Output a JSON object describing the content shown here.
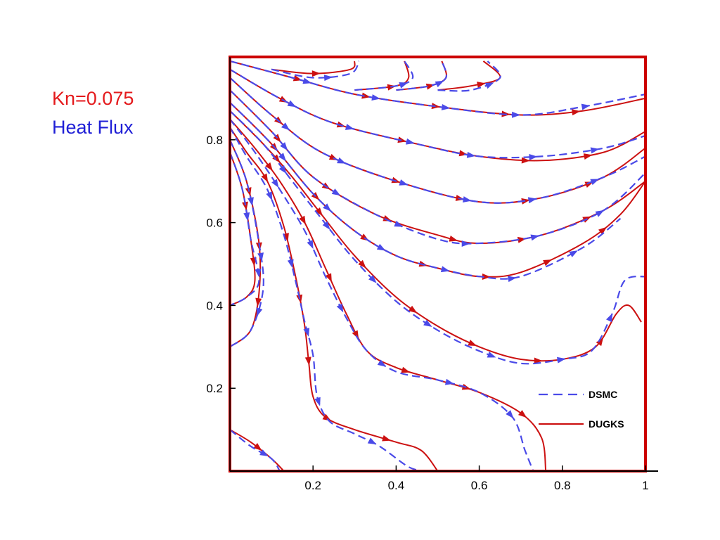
{
  "annotation": {
    "line1": "Kn=0.075",
    "line2": "Heat Flux",
    "line1_color": "#e41a1c",
    "line2_color": "#1f1fd6"
  },
  "colors": {
    "frame": "#cc0000",
    "dsmc": "#4a4ae8",
    "dugks": "#cc1111"
  },
  "chart_data": {
    "type": "line",
    "xlim": [
      0,
      1
    ],
    "ylim": [
      0,
      1
    ],
    "xticks": [
      0.2,
      0.4,
      0.6,
      0.8,
      1
    ],
    "xtick_labels": [
      "0.2",
      "0.4",
      "0.6",
      "0.8",
      "1"
    ],
    "yticks": [
      0.2,
      0.4,
      0.6,
      0.8
    ],
    "ytick_labels": [
      "0.2",
      "0.4",
      "0.6",
      "0.8"
    ],
    "legend": {
      "position": "bottom-right",
      "entries": [
        "DSMC",
        "DUGKS"
      ]
    },
    "series": [
      {
        "name": "DUGKS",
        "style": "solid",
        "lines": [
          [
            [
              0.0,
              0.99
            ],
            [
              0.15,
              0.95
            ],
            [
              0.3,
              0.91
            ],
            [
              0.5,
              0.88
            ],
            [
              0.7,
              0.86
            ],
            [
              0.85,
              0.87
            ],
            [
              1.0,
              0.9
            ]
          ],
          [
            [
              0.0,
              0.97
            ],
            [
              0.12,
              0.9
            ],
            [
              0.25,
              0.84
            ],
            [
              0.45,
              0.79
            ],
            [
              0.6,
              0.76
            ],
            [
              0.75,
              0.75
            ],
            [
              0.9,
              0.77
            ],
            [
              1.0,
              0.82
            ]
          ],
          [
            [
              0.0,
              0.95
            ],
            [
              0.1,
              0.86
            ],
            [
              0.22,
              0.77
            ],
            [
              0.4,
              0.7
            ],
            [
              0.6,
              0.65
            ],
            [
              0.75,
              0.66
            ],
            [
              0.9,
              0.71
            ],
            [
              1.0,
              0.78
            ]
          ],
          [
            [
              0.0,
              0.92
            ],
            [
              0.1,
              0.82
            ],
            [
              0.2,
              0.71
            ],
            [
              0.35,
              0.62
            ],
            [
              0.5,
              0.57
            ],
            [
              0.6,
              0.55
            ],
            [
              0.75,
              0.57
            ],
            [
              0.9,
              0.63
            ],
            [
              1.0,
              0.7
            ]
          ],
          [
            [
              0.0,
              0.89
            ],
            [
              0.1,
              0.79
            ],
            [
              0.2,
              0.67
            ],
            [
              0.3,
              0.58
            ],
            [
              0.4,
              0.52
            ],
            [
              0.5,
              0.49
            ],
            [
              0.6,
              0.47
            ],
            [
              0.7,
              0.48
            ],
            [
              0.85,
              0.55
            ],
            [
              0.94,
              0.62
            ],
            [
              1.0,
              0.7
            ]
          ],
          [
            [
              0.0,
              0.87
            ],
            [
              0.08,
              0.79
            ],
            [
              0.15,
              0.71
            ],
            [
              0.22,
              0.62
            ],
            [
              0.3,
              0.52
            ],
            [
              0.4,
              0.42
            ],
            [
              0.5,
              0.35
            ],
            [
              0.6,
              0.3
            ],
            [
              0.7,
              0.27
            ],
            [
              0.8,
              0.27
            ],
            [
              0.88,
              0.3
            ],
            [
              0.93,
              0.38
            ],
            [
              0.96,
              0.4
            ],
            [
              0.99,
              0.36
            ]
          ],
          [
            [
              0.0,
              0.85
            ],
            [
              0.06,
              0.78
            ],
            [
              0.12,
              0.7
            ],
            [
              0.18,
              0.6
            ],
            [
              0.23,
              0.49
            ],
            [
              0.28,
              0.38
            ],
            [
              0.33,
              0.29
            ],
            [
              0.4,
              0.25
            ],
            [
              0.5,
              0.22
            ],
            [
              0.6,
              0.19
            ],
            [
              0.7,
              0.14
            ],
            [
              0.75,
              0.08
            ],
            [
              0.76,
              0.0
            ]
          ],
          [
            [
              0.0,
              0.83
            ],
            [
              0.04,
              0.77
            ],
            [
              0.09,
              0.7
            ],
            [
              0.13,
              0.59
            ],
            [
              0.16,
              0.46
            ],
            [
              0.18,
              0.35
            ],
            [
              0.19,
              0.26
            ],
            [
              0.2,
              0.18
            ],
            [
              0.23,
              0.13
            ],
            [
              0.3,
              0.1
            ],
            [
              0.4,
              0.07
            ],
            [
              0.46,
              0.05
            ],
            [
              0.5,
              0.0
            ]
          ],
          [
            [
              0.0,
              0.8
            ],
            [
              0.04,
              0.7
            ],
            [
              0.07,
              0.55
            ],
            [
              0.07,
              0.43
            ],
            [
              0.05,
              0.34
            ],
            [
              0.0,
              0.3
            ]
          ],
          [
            [
              0.0,
              0.77
            ],
            [
              0.03,
              0.68
            ],
            [
              0.05,
              0.56
            ],
            [
              0.06,
              0.46
            ],
            [
              0.04,
              0.42
            ],
            [
              0.0,
              0.4
            ]
          ],
          [
            [
              0.0,
              0.1
            ],
            [
              0.05,
              0.07
            ],
            [
              0.1,
              0.03
            ],
            [
              0.13,
              0.0
            ]
          ],
          [
            [
              0.1,
              0.97
            ],
            [
              0.2,
              0.96
            ],
            [
              0.29,
              0.97
            ],
            [
              0.3,
              0.99
            ]
          ],
          [
            [
              0.3,
              0.92
            ],
            [
              0.4,
              0.93
            ],
            [
              0.43,
              0.95
            ],
            [
              0.42,
              0.99
            ]
          ],
          [
            [
              0.4,
              0.92
            ],
            [
              0.48,
              0.93
            ],
            [
              0.52,
              0.95
            ],
            [
              0.51,
              0.99
            ]
          ],
          [
            [
              0.5,
              0.92
            ],
            [
              0.58,
              0.93
            ],
            [
              0.65,
              0.95
            ],
            [
              0.61,
              0.99
            ]
          ]
        ]
      },
      {
        "name": "DSMC",
        "style": "dashed",
        "lines": [
          [
            [
              0.0,
              0.99
            ],
            [
              0.15,
              0.95
            ],
            [
              0.3,
              0.91
            ],
            [
              0.5,
              0.88
            ],
            [
              0.7,
              0.86
            ],
            [
              0.85,
              0.88
            ],
            [
              1.0,
              0.91
            ]
          ],
          [
            [
              0.0,
              0.97
            ],
            [
              0.12,
              0.9
            ],
            [
              0.25,
              0.84
            ],
            [
              0.45,
              0.79
            ],
            [
              0.6,
              0.76
            ],
            [
              0.75,
              0.76
            ],
            [
              0.9,
              0.78
            ],
            [
              1.0,
              0.81
            ]
          ],
          [
            [
              0.0,
              0.95
            ],
            [
              0.1,
              0.86
            ],
            [
              0.22,
              0.77
            ],
            [
              0.4,
              0.7
            ],
            [
              0.6,
              0.65
            ],
            [
              0.75,
              0.66
            ],
            [
              0.9,
              0.71
            ],
            [
              1.0,
              0.76
            ]
          ],
          [
            [
              0.0,
              0.92
            ],
            [
              0.1,
              0.82
            ],
            [
              0.2,
              0.71
            ],
            [
              0.35,
              0.62
            ],
            [
              0.5,
              0.56
            ],
            [
              0.6,
              0.55
            ],
            [
              0.75,
              0.57
            ],
            [
              0.9,
              0.63
            ],
            [
              1.0,
              0.72
            ]
          ],
          [
            [
              0.0,
              0.89
            ],
            [
              0.1,
              0.79
            ],
            [
              0.2,
              0.67
            ],
            [
              0.3,
              0.58
            ],
            [
              0.4,
              0.52
            ],
            [
              0.5,
              0.49
            ],
            [
              0.6,
              0.47
            ],
            [
              0.7,
              0.47
            ],
            [
              0.85,
              0.54
            ],
            [
              0.94,
              0.61
            ]
          ],
          [
            [
              0.0,
              0.87
            ],
            [
              0.08,
              0.79
            ],
            [
              0.15,
              0.7
            ],
            [
              0.22,
              0.61
            ],
            [
              0.3,
              0.51
            ],
            [
              0.4,
              0.41
            ],
            [
              0.5,
              0.34
            ],
            [
              0.6,
              0.29
            ],
            [
              0.7,
              0.26
            ],
            [
              0.8,
              0.27
            ],
            [
              0.87,
              0.29
            ],
            [
              0.92,
              0.38
            ],
            [
              0.95,
              0.46
            ],
            [
              1.0,
              0.47
            ]
          ],
          [
            [
              0.0,
              0.85
            ],
            [
              0.06,
              0.77
            ],
            [
              0.12,
              0.68
            ],
            [
              0.18,
              0.58
            ],
            [
              0.23,
              0.47
            ],
            [
              0.28,
              0.37
            ],
            [
              0.33,
              0.29
            ],
            [
              0.4,
              0.24
            ],
            [
              0.5,
              0.22
            ],
            [
              0.6,
              0.19
            ],
            [
              0.68,
              0.13
            ],
            [
              0.71,
              0.05
            ],
            [
              0.73,
              0.0
            ]
          ],
          [
            [
              0.0,
              0.83
            ],
            [
              0.04,
              0.76
            ],
            [
              0.09,
              0.68
            ],
            [
              0.13,
              0.57
            ],
            [
              0.16,
              0.45
            ],
            [
              0.18,
              0.36
            ],
            [
              0.2,
              0.28
            ],
            [
              0.21,
              0.18
            ],
            [
              0.24,
              0.12
            ],
            [
              0.3,
              0.09
            ],
            [
              0.36,
              0.06
            ],
            [
              0.43,
              0.01
            ],
            [
              0.47,
              0.0
            ]
          ],
          [
            [
              0.0,
              0.8
            ],
            [
              0.04,
              0.7
            ],
            [
              0.07,
              0.55
            ],
            [
              0.08,
              0.44
            ],
            [
              0.05,
              0.34
            ],
            [
              0.0,
              0.3
            ]
          ],
          [
            [
              0.0,
              0.77
            ],
            [
              0.03,
              0.68
            ],
            [
              0.05,
              0.56
            ],
            [
              0.07,
              0.46
            ],
            [
              0.04,
              0.42
            ],
            [
              0.0,
              0.4
            ]
          ],
          [
            [
              0.0,
              0.1
            ],
            [
              0.05,
              0.06
            ],
            [
              0.1,
              0.03
            ],
            [
              0.12,
              0.0
            ]
          ],
          [
            [
              0.1,
              0.97
            ],
            [
              0.2,
              0.95
            ],
            [
              0.29,
              0.96
            ],
            [
              0.31,
              0.99
            ]
          ],
          [
            [
              0.3,
              0.92
            ],
            [
              0.4,
              0.93
            ],
            [
              0.44,
              0.95
            ],
            [
              0.42,
              0.99
            ]
          ],
          [
            [
              0.4,
              0.92
            ],
            [
              0.48,
              0.93
            ],
            [
              0.52,
              0.95
            ],
            [
              0.51,
              0.99
            ]
          ],
          [
            [
              0.5,
              0.92
            ],
            [
              0.58,
              0.92
            ],
            [
              0.65,
              0.95
            ],
            [
              0.62,
              0.99
            ]
          ]
        ]
      }
    ]
  }
}
